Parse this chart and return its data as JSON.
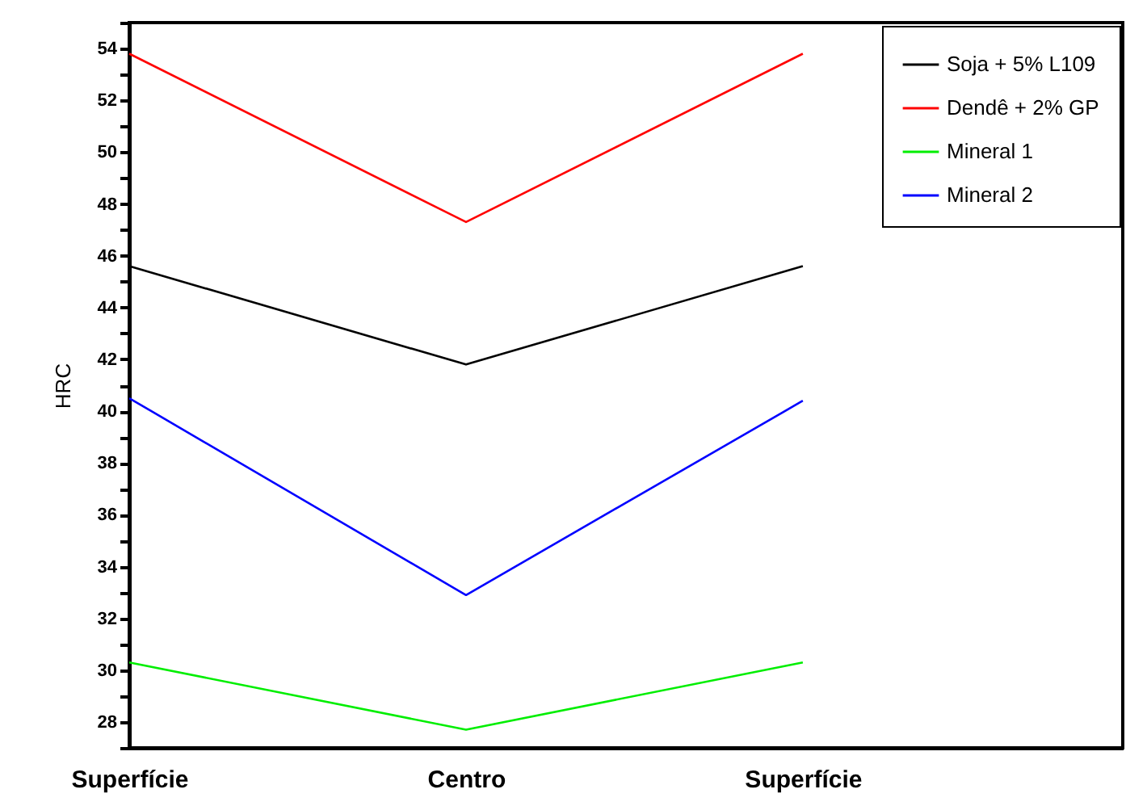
{
  "chart_data": {
    "type": "line",
    "ylabel": "HRC",
    "categories": [
      "Superfície",
      "Centro",
      "Superfície"
    ],
    "series": [
      {
        "name": "Soja + 5% L109",
        "color": "#000000",
        "values": [
          45.6,
          41.8,
          45.6
        ]
      },
      {
        "name": "Dendê + 2% GP",
        "color": "#ff0000",
        "values": [
          53.8,
          47.3,
          53.8
        ]
      },
      {
        "name": "Mineral 1",
        "color": "#00ee00",
        "values": [
          30.3,
          27.7,
          30.3
        ]
      },
      {
        "name": "Mineral 2",
        "color": "#0000ff",
        "values": [
          40.5,
          32.9,
          40.4
        ]
      }
    ],
    "ylim": [
      27,
      55
    ],
    "yticks": [
      {
        "value": 27,
        "label": null
      },
      28,
      {
        "value": 29,
        "label": null
      },
      30,
      {
        "value": 31,
        "label": null
      },
      32,
      {
        "value": 33,
        "label": null
      },
      34,
      {
        "value": 35,
        "label": null
      },
      36,
      {
        "value": 37,
        "label": null
      },
      38,
      {
        "value": 39,
        "label": null
      },
      40,
      {
        "value": 41,
        "label": null
      },
      42,
      {
        "value": 43,
        "label": null
      },
      44,
      {
        "value": 45,
        "label": null
      },
      46,
      {
        "value": 47,
        "label": null
      },
      48,
      {
        "value": 49,
        "label": null
      },
      50,
      {
        "value": 51,
        "label": null
      },
      52,
      {
        "value": 53,
        "label": null
      },
      54,
      {
        "value": 55,
        "label": null
      }
    ],
    "grid": false,
    "legend": "top right",
    "marker": "none",
    "line_style": "solid"
  }
}
